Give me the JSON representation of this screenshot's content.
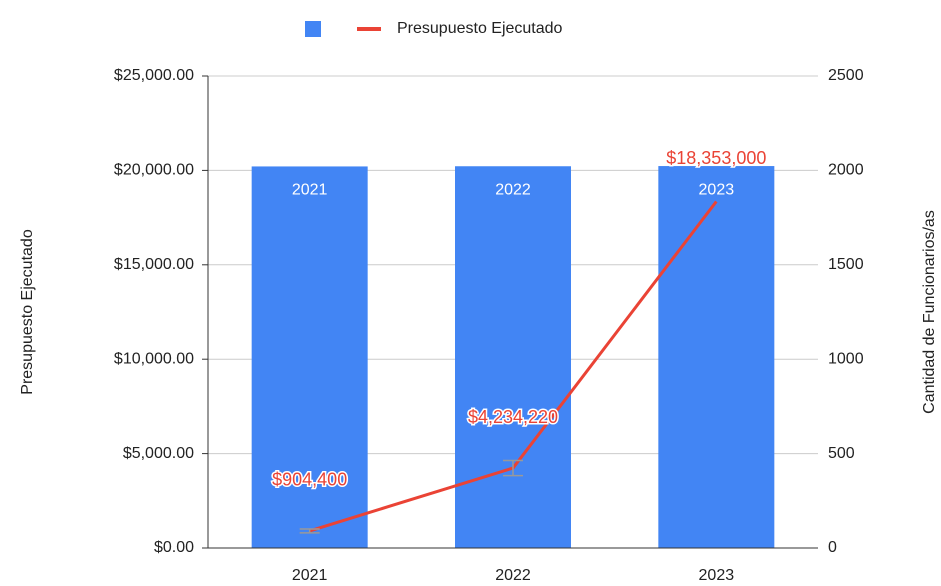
{
  "chart_data": {
    "type": "combo",
    "categories": [
      "2021",
      "2022",
      "2023"
    ],
    "series": [
      {
        "type": "bar",
        "color": "#4285f4",
        "axis": "y2",
        "values": [
          2021,
          2022,
          2023
        ]
      },
      {
        "type": "line",
        "name": "Presupuesto Ejecutado",
        "color": "#ea4335",
        "axis": "y",
        "values": [
          904.4,
          4234.22,
          18353
        ],
        "value_labels": [
          "$904,400",
          "$4,234,220",
          "$18,353,000"
        ],
        "errors": [
          100,
          400,
          0
        ]
      }
    ],
    "ylabel": "Presupuesto Ejecutado",
    "y2label": "Cantidad de Funcionarios/as",
    "ylim": [
      0,
      25000
    ],
    "yticks": [
      {
        "value": 0,
        "label": "$0.00"
      },
      {
        "value": 5000,
        "label": "$5,000.00"
      },
      {
        "value": 10000,
        "label": "$10,000.00"
      },
      {
        "value": 15000,
        "label": "$15,000.00"
      },
      {
        "value": 20000,
        "label": "$20,000.00"
      },
      {
        "value": 25000,
        "label": "$25,000.00"
      }
    ],
    "y2lim": [
      0,
      2500
    ],
    "y2ticks": [
      0,
      500,
      1000,
      1500,
      2000,
      2500
    ],
    "grid": true,
    "legend": "top"
  }
}
